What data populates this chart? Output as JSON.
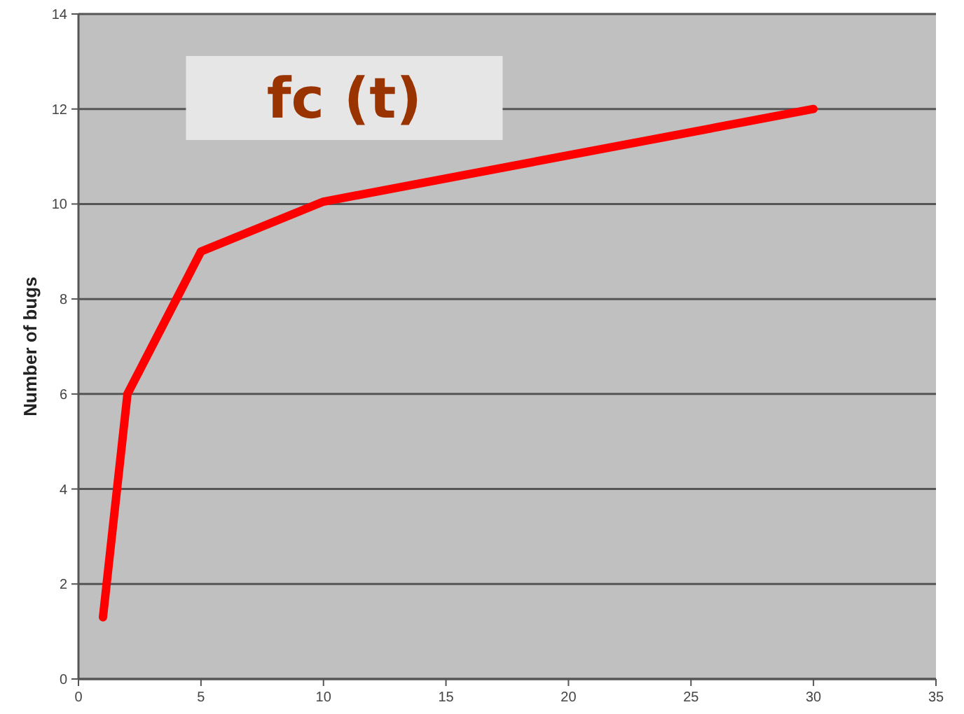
{
  "chart_data": {
    "type": "line",
    "title": "fc (t)",
    "ylabel": "Number of bugs",
    "x": [
      1,
      2,
      5,
      10,
      30
    ],
    "series": [
      {
        "color": "#ff0000",
        "values": [
          1.3,
          6,
          9,
          10.05,
          12
        ]
      }
    ],
    "xlim": [
      0,
      35
    ],
    "xticks": [
      0,
      5,
      10,
      15,
      20,
      25,
      30,
      35
    ],
    "ylim": [
      0,
      14
    ],
    "yticks": [
      0,
      2,
      4,
      6,
      8,
      10,
      12,
      14
    ],
    "grid": "y",
    "marker": "none",
    "line_style": "solid"
  }
}
